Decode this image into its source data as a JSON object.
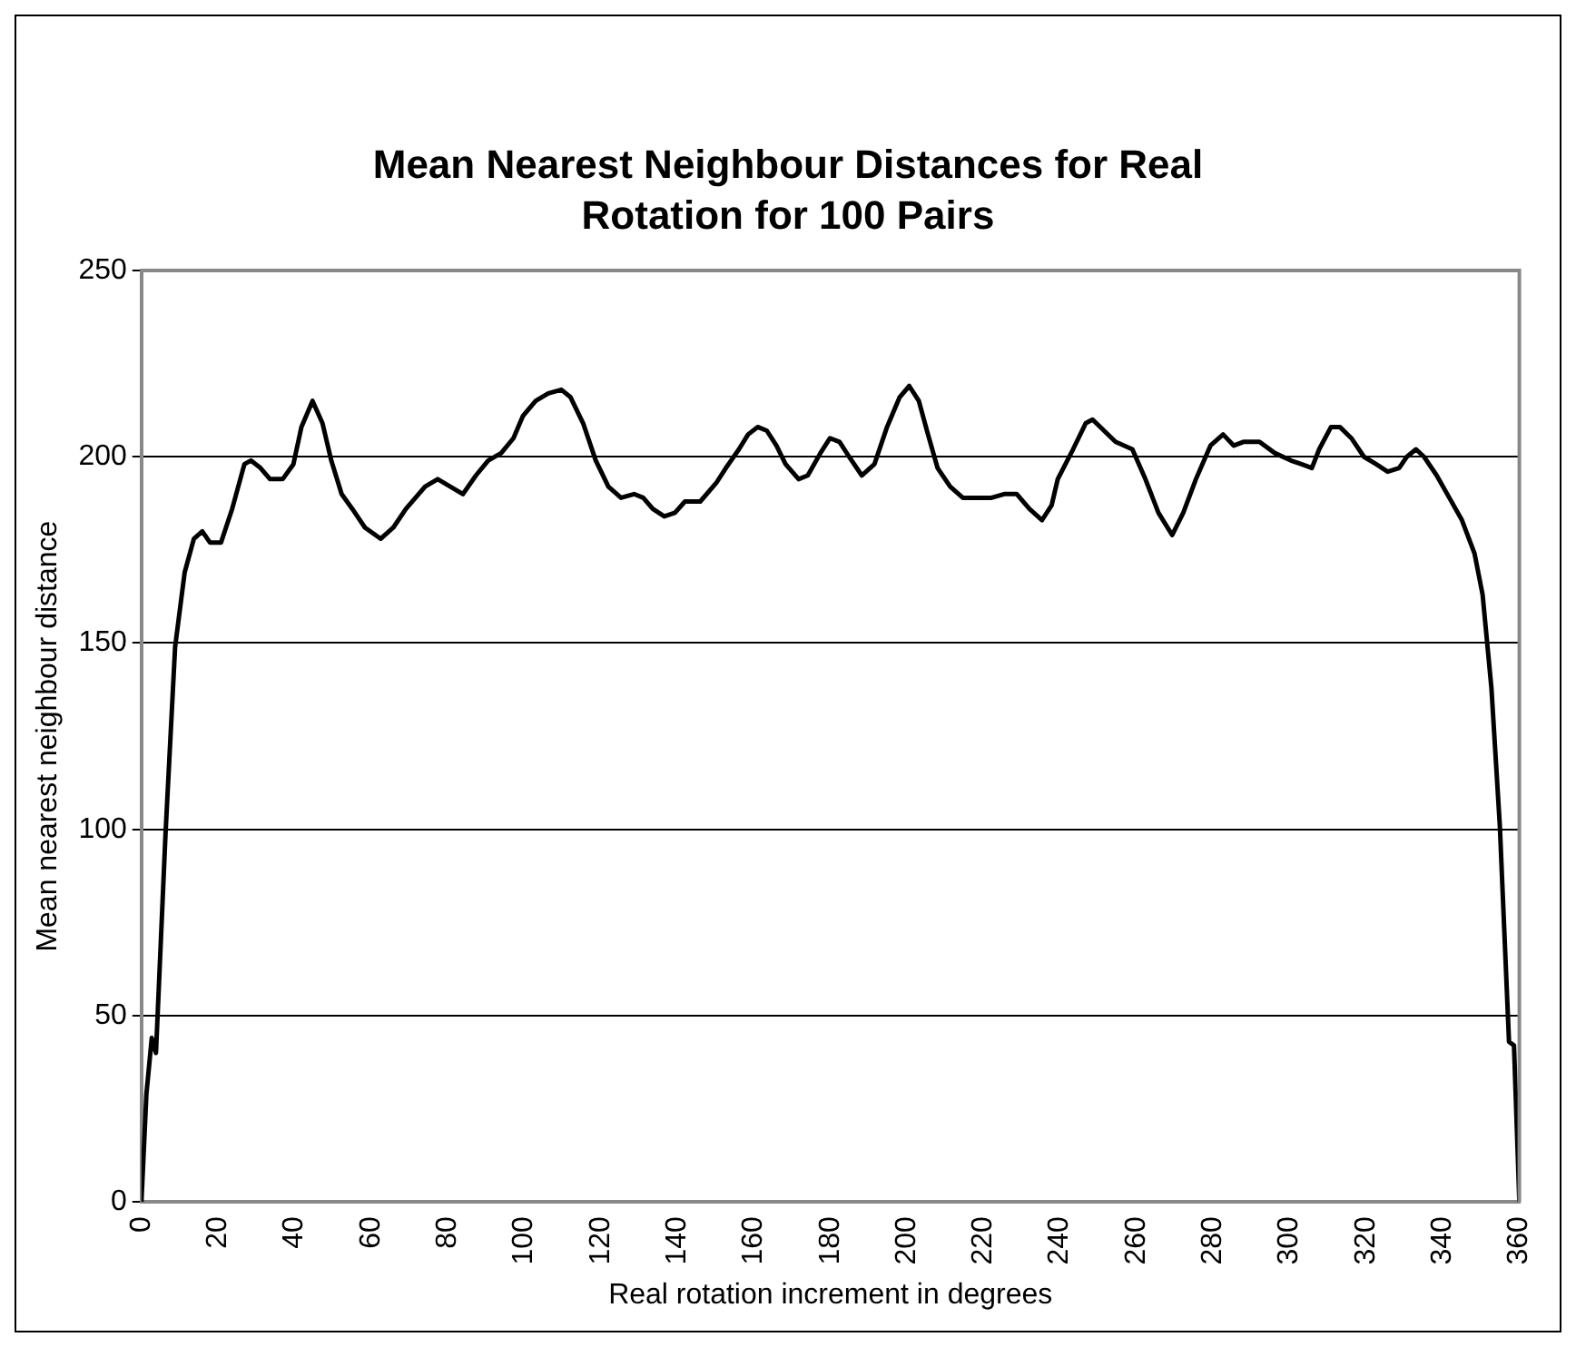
{
  "chart_data": {
    "type": "line",
    "title": "Mean Nearest Neighbour Distances for Real Rotation for 100 Pairs",
    "xlabel": "Real rotation increment in degrees",
    "ylabel": "Mean nearest neighbour distance",
    "x": [
      0,
      1.3,
      2.7,
      3.8,
      6.3,
      8.8,
      11.3,
      13.7,
      15.9,
      17.9,
      20.8,
      23.7,
      26.9,
      28.6,
      31.1,
      33.6,
      36.9,
      39.7,
      41.8,
      44.7,
      47.3,
      49.6,
      52.3,
      55.1,
      58.4,
      62.5,
      65.8,
      69.1,
      74.1,
      77.4,
      80.7,
      84.0,
      87.4,
      90.6,
      94.0,
      97.2,
      99.7,
      103.0,
      106.3,
      109.7,
      112.1,
      115.4,
      118.7,
      122.0,
      125.3,
      128.7,
      131.1,
      133.6,
      136.6,
      139.4,
      142.0,
      146.0,
      150.2,
      152.7,
      156.1,
      158.5,
      161.0,
      163.4,
      165.9,
      168.3,
      171.7,
      174.1,
      177.4,
      179.9,
      182.4,
      184.9,
      188.2,
      191.5,
      194.8,
      198.1,
      200.6,
      203.1,
      205.5,
      208.0,
      211.3,
      214.6,
      218.8,
      222.1,
      225.4,
      228.7,
      232.0,
      235.3,
      237.8,
      239.4,
      243.4,
      246.7,
      248.5,
      251.5,
      254.5,
      258.9,
      262.3,
      265.7,
      269.3,
      272.2,
      275.5,
      279.3,
      282.6,
      285.4,
      287.9,
      292.1,
      296.1,
      300.3,
      303.1,
      305.8,
      307.7,
      310.8,
      313.1,
      316.1,
      319.4,
      322.6,
      325.6,
      328.6,
      330.6,
      333.0,
      335.1,
      338.4,
      341.7,
      345.0,
      348.3,
      350.4,
      352.7,
      354.9,
      357.3,
      358.6,
      360
    ],
    "series": [
      {
        "color": "#000000",
        "values": [
          0,
          29,
          44,
          40,
          99,
          149,
          169,
          178,
          180,
          177,
          177,
          186,
          198,
          199,
          197,
          194,
          194,
          198,
          208,
          215,
          209,
          199,
          190,
          186,
          181,
          178,
          181,
          186,
          192,
          194,
          192,
          190,
          195,
          199,
          201,
          205,
          211,
          215,
          217,
          218,
          216,
          209,
          199,
          192,
          189,
          190,
          189,
          186,
          184,
          185,
          188,
          188,
          193,
          197,
          202,
          206,
          208,
          207,
          203,
          198,
          194,
          195,
          201,
          205,
          204,
          200,
          195,
          198,
          208,
          216,
          219,
          215,
          206,
          197,
          192,
          189,
          189,
          189,
          190,
          190,
          186,
          183,
          187,
          194,
          202,
          209,
          210,
          207,
          204,
          202,
          194,
          185,
          179,
          185,
          194,
          203,
          206,
          203,
          204,
          204,
          201,
          199,
          198,
          197,
          202,
          208,
          208,
          205,
          200,
          198,
          196,
          197,
          200,
          202,
          200,
          195,
          189,
          183,
          174,
          163,
          138,
          101,
          43,
          42,
          0
        ]
      }
    ],
    "xlim": [
      0,
      360
    ],
    "xticks": [
      0,
      20,
      40,
      60,
      80,
      100,
      120,
      140,
      160,
      180,
      200,
      220,
      240,
      260,
      280,
      300,
      320,
      340,
      360
    ],
    "ylim": [
      0,
      250
    ],
    "yticks": [
      0,
      50,
      100,
      150,
      200,
      250
    ],
    "grid": "y",
    "legend": false
  }
}
